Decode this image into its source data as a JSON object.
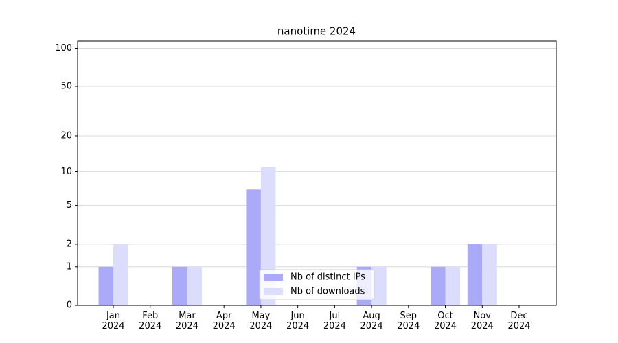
{
  "chart_data": {
    "type": "bar",
    "title": "nanotime 2024",
    "categories": [
      "Jan\n2024",
      "Feb\n2024",
      "Mar\n2024",
      "Apr\n2024",
      "May\n2024",
      "Jun\n2024",
      "Jul\n2024",
      "Aug\n2024",
      "Sep\n2024",
      "Oct\n2024",
      "Nov\n2024",
      "Dec\n2024"
    ],
    "series": [
      {
        "name": "Nb of distinct IPs",
        "color": "#aaaaf8",
        "values": [
          1,
          0,
          1,
          0,
          7,
          0,
          0,
          1,
          0,
          1,
          2,
          0
        ]
      },
      {
        "name": "Nb of downloads",
        "color": "#dcdcfc",
        "values": [
          2,
          0,
          1,
          0,
          11,
          0,
          0,
          1,
          0,
          1,
          2,
          0
        ]
      }
    ],
    "yscale": "log1p",
    "ylim": [
      0,
      114
    ],
    "yticks": [
      0,
      1,
      2,
      5,
      10,
      20,
      50,
      100
    ],
    "grid": true,
    "legend": "lower center"
  }
}
